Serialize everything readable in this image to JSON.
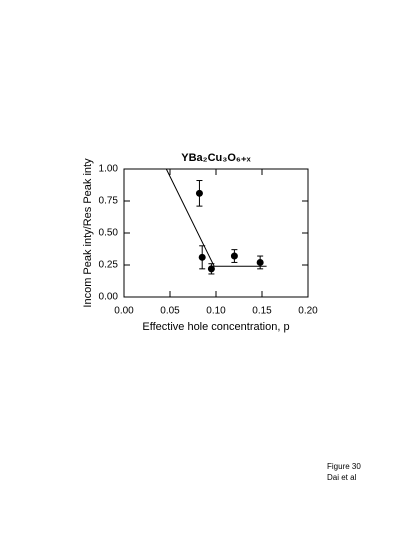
{
  "chart_data": {
    "type": "scatter",
    "title": "YBa₂Cu₃O₆₊ₓ",
    "x_label": "Effective hole concentration, p",
    "y_label": "Incom Peak inty/Res Peak inty",
    "xlim": [
      0,
      0.2
    ],
    "ylim": [
      0,
      1
    ],
    "xticks": [
      {
        "value": 0,
        "label": "0.00"
      },
      {
        "value": 0.05,
        "label": "0.05"
      },
      {
        "value": 0.1,
        "label": "0.10"
      },
      {
        "value": 0.15,
        "label": "0.15"
      },
      {
        "value": 0.2,
        "label": "0.20"
      }
    ],
    "yticks": [
      {
        "value": 0,
        "label": "0.00"
      },
      {
        "value": 0.25,
        "label": "0.25"
      },
      {
        "value": 0.5,
        "label": "0.50"
      },
      {
        "value": 0.75,
        "label": "0.75"
      },
      {
        "value": 1,
        "label": "1.00"
      }
    ],
    "series": [
      {
        "color": "#000000",
        "x": [
          0.082,
          0.085,
          0.095,
          0.12,
          0.148
        ],
        "values": [
          0.81,
          0.31,
          0.22,
          0.32,
          0.27
        ],
        "errors": [
          0.1,
          0.09,
          0.04,
          0.05,
          0.05
        ]
      }
    ],
    "lines": [
      {
        "color": "#000000",
        "x": [
          0.046,
          0.098,
          0.155
        ],
        "values": [
          1.0,
          0.24,
          0.24
        ]
      }
    ]
  },
  "caption": [
    "Figure 30",
    "Dai et al"
  ]
}
